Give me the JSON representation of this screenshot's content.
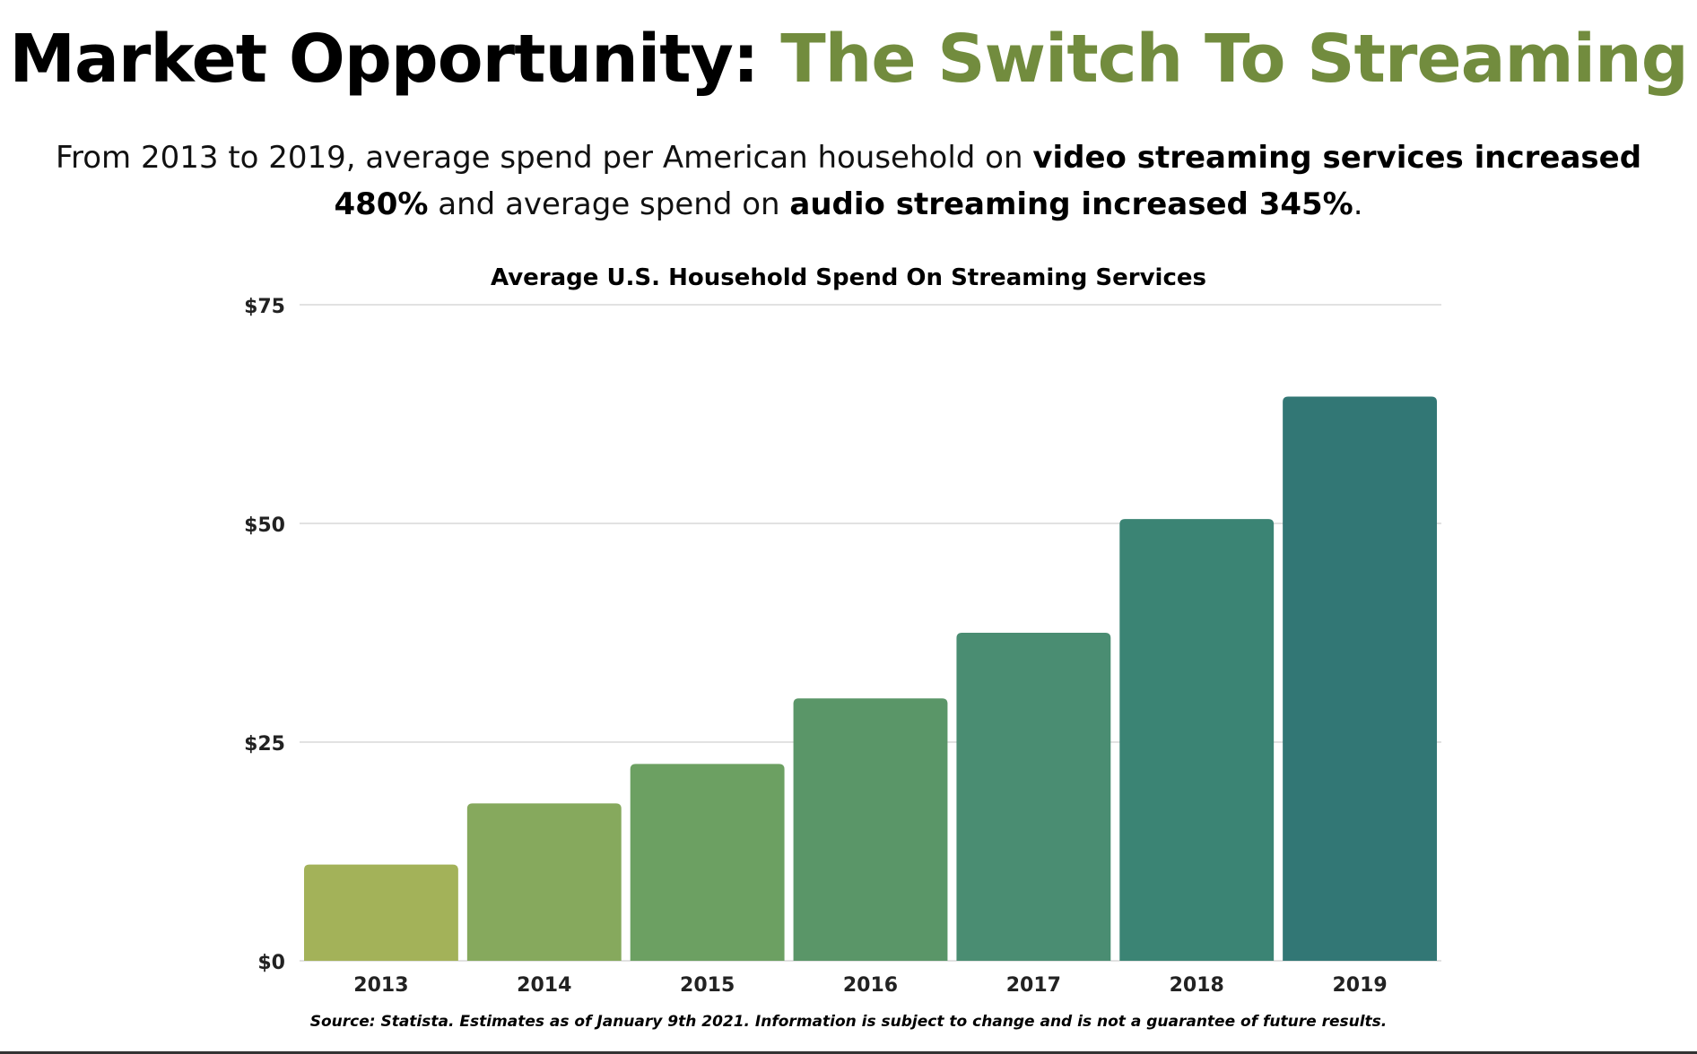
{
  "headline": {
    "main": "Market Opportunity: ",
    "accent": "The Switch To Streaming",
    "accent_color": "#728c3e"
  },
  "subtitle": {
    "p1": "From 2013 to 2019, average spend per American household on ",
    "b1": "video streaming services increased 480%",
    "p2": " and average spend on ",
    "b2": "audio streaming increased 345%",
    "p3": "."
  },
  "chart_data": {
    "type": "bar",
    "title": "Average U.S. Household Spend On Streaming Services",
    "xlabel": "",
    "ylabel": "",
    "categories": [
      "2013",
      "2014",
      "2015",
      "2016",
      "2017",
      "2018",
      "2019"
    ],
    "values": [
      11,
      18,
      22.5,
      30,
      37.5,
      50.5,
      64.5
    ],
    "bar_colors": [
      "#a3b259",
      "#86a95d",
      "#6ca062",
      "#5a9668",
      "#4a8d72",
      "#3b8474",
      "#327775"
    ],
    "ylim": [
      0,
      75
    ],
    "yticks": [
      0,
      25,
      50,
      75
    ],
    "ytick_labels": [
      "$0",
      "$25",
      "$50",
      "$75"
    ],
    "grid": true,
    "legend": "none"
  },
  "source_note": "Source: Statista. Estimates as of January 9th  2021. Information is subject to change and is not a guarantee of future results."
}
